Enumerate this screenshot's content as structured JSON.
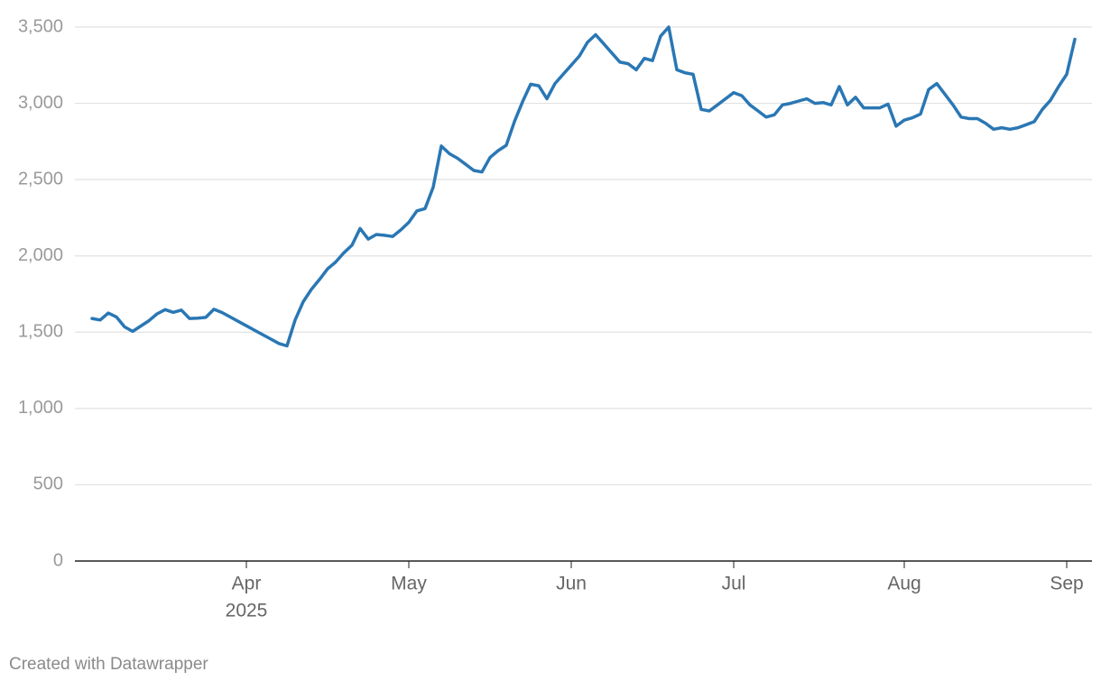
{
  "chart_data": {
    "type": "line",
    "color": "#2a77b4",
    "grid": true,
    "ylim": [
      0,
      3500
    ],
    "yticks": [
      0,
      500,
      {
        "value": 1000,
        "label": "1,000"
      },
      {
        "value": 1500,
        "label": "1,500"
      },
      {
        "value": 2000,
        "label": "2,000"
      },
      {
        "value": 2500,
        "label": "2,500"
      },
      {
        "value": 3000,
        "label": "3,000"
      },
      {
        "value": 3500,
        "label": "3,500"
      }
    ],
    "categories": [
      null,
      null,
      null,
      null,
      null,
      null,
      null,
      null,
      null,
      null,
      null,
      null,
      null,
      null,
      null,
      null,
      null,
      null,
      null,
      "Apr",
      null,
      null,
      null,
      null,
      null,
      null,
      null,
      null,
      null,
      null,
      null,
      null,
      null,
      null,
      null,
      null,
      null,
      null,
      null,
      "May",
      null,
      null,
      null,
      null,
      null,
      null,
      null,
      null,
      null,
      null,
      null,
      null,
      null,
      null,
      null,
      null,
      null,
      null,
      null,
      "Jun",
      null,
      null,
      null,
      null,
      null,
      null,
      null,
      null,
      null,
      null,
      null,
      null,
      null,
      null,
      null,
      null,
      null,
      null,
      null,
      "Jul",
      null,
      null,
      null,
      null,
      null,
      null,
      null,
      null,
      null,
      null,
      null,
      null,
      null,
      null,
      null,
      null,
      null,
      null,
      null,
      null,
      "Aug",
      null,
      null,
      null,
      null,
      null,
      null,
      null,
      null,
      null,
      null,
      null,
      null,
      null,
      null,
      null,
      null,
      null,
      null,
      null,
      "Sep",
      null
    ],
    "x_year_label": "2025",
    "values": [
      1590,
      1580,
      1625,
      1600,
      1535,
      1505,
      1540,
      1575,
      1620,
      1648,
      1630,
      1645,
      1590,
      1592,
      1597,
      1650,
      1629,
      1600,
      1571,
      1542,
      1513,
      1484,
      1455,
      1426,
      1410,
      1580,
      1700,
      1780,
      1845,
      1915,
      1960,
      2020,
      2070,
      2180,
      2110,
      2140,
      2135,
      2127,
      2170,
      2220,
      2295,
      2310,
      2450,
      2720,
      2670,
      2640,
      2600,
      2560,
      2550,
      2645,
      2690,
      2725,
      2880,
      3010,
      3125,
      3115,
      3030,
      3130,
      3190,
      3250,
      3310,
      3400,
      3450,
      3390,
      3330,
      3270,
      3260,
      3220,
      3295,
      3280,
      3440,
      3500,
      3220,
      3200,
      3190,
      2960,
      2950,
      2990,
      3030,
      3070,
      3050,
      2990,
      2950,
      2910,
      2925,
      2990,
      3000,
      3015,
      3030,
      3000,
      3005,
      2990,
      3110,
      2990,
      3040,
      2970,
      2970,
      2970,
      2995,
      2850,
      2890,
      2905,
      2930,
      3090,
      3130,
      3060,
      2990,
      2910,
      2900,
      2900,
      2870,
      2830,
      2840,
      2830,
      2840,
      2860,
      2880,
      2960,
      3020,
      3110,
      3190,
      3420
    ],
    "footer": "Created with Datawrapper"
  }
}
